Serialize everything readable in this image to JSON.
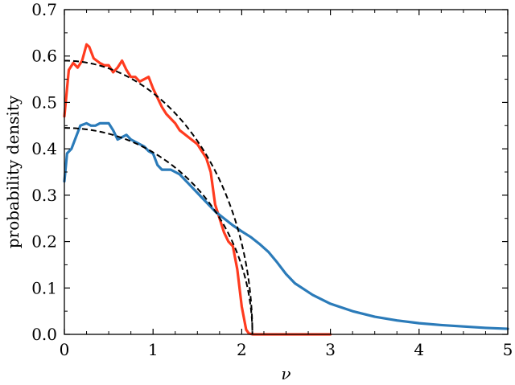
{
  "chart_data": {
    "type": "line",
    "xlabel": "ν",
    "ylabel": "probability density",
    "xlim": [
      0,
      5
    ],
    "ylim": [
      0,
      0.7
    ],
    "x_ticks": [
      0,
      1,
      2,
      3,
      4,
      5
    ],
    "x_tick_labels": [
      "0",
      "1",
      "2",
      "3",
      "4",
      "5"
    ],
    "y_ticks": [
      0.0,
      0.1,
      0.2,
      0.3,
      0.4,
      0.5,
      0.6,
      0.7
    ],
    "y_tick_labels": [
      "0.0",
      "0.1",
      "0.2",
      "0.3",
      "0.4",
      "0.5",
      "0.6",
      "0.7"
    ],
    "grid": false,
    "legend": "none",
    "series": [
      {
        "color": "#ff3b1f",
        "style": "solid",
        "x": [
          0.0,
          0.05,
          0.1,
          0.15,
          0.2,
          0.25,
          0.28,
          0.33,
          0.4,
          0.45,
          0.5,
          0.55,
          0.6,
          0.65,
          0.7,
          0.75,
          0.8,
          0.85,
          0.9,
          0.95,
          1.0,
          1.05,
          1.1,
          1.15,
          1.2,
          1.25,
          1.3,
          1.4,
          1.5,
          1.6,
          1.65,
          1.7,
          1.75,
          1.8,
          1.85,
          1.9,
          1.95,
          2.0,
          2.05,
          2.08,
          2.12,
          2.2,
          2.5,
          3.0
        ],
        "y": [
          0.47,
          0.57,
          0.585,
          0.575,
          0.59,
          0.625,
          0.62,
          0.595,
          0.585,
          0.58,
          0.58,
          0.565,
          0.575,
          0.59,
          0.57,
          0.555,
          0.555,
          0.545,
          0.55,
          0.555,
          0.53,
          0.51,
          0.49,
          0.475,
          0.465,
          0.455,
          0.44,
          0.425,
          0.41,
          0.38,
          0.35,
          0.28,
          0.25,
          0.22,
          0.2,
          0.19,
          0.14,
          0.06,
          0.01,
          0.002,
          0.0,
          0.0,
          0.0,
          0.0
        ]
      },
      {
        "color": "#2b7bb9",
        "style": "solid",
        "x": [
          0.0,
          0.03,
          0.08,
          0.12,
          0.18,
          0.25,
          0.3,
          0.35,
          0.4,
          0.45,
          0.5,
          0.55,
          0.6,
          0.65,
          0.7,
          0.75,
          0.8,
          0.85,
          0.9,
          0.95,
          1.0,
          1.05,
          1.1,
          1.15,
          1.2,
          1.25,
          1.3,
          1.4,
          1.5,
          1.6,
          1.7,
          1.8,
          1.9,
          2.0,
          2.1,
          2.2,
          2.3,
          2.4,
          2.5,
          2.6,
          2.8,
          3.0,
          3.25,
          3.5,
          3.75,
          4.0,
          4.25,
          4.5,
          4.75,
          5.0
        ],
        "y": [
          0.33,
          0.39,
          0.4,
          0.42,
          0.45,
          0.455,
          0.45,
          0.45,
          0.455,
          0.455,
          0.455,
          0.44,
          0.42,
          0.425,
          0.43,
          0.42,
          0.415,
          0.41,
          0.405,
          0.395,
          0.39,
          0.365,
          0.355,
          0.355,
          0.355,
          0.35,
          0.345,
          0.325,
          0.305,
          0.285,
          0.265,
          0.25,
          0.235,
          0.222,
          0.21,
          0.195,
          0.178,
          0.155,
          0.13,
          0.11,
          0.085,
          0.066,
          0.05,
          0.038,
          0.03,
          0.024,
          0.02,
          0.017,
          0.014,
          0.012
        ]
      },
      {
        "color": "#000000",
        "style": "dashed",
        "semicircle_radius": 2.12,
        "semicircle_peak": 0.59
      },
      {
        "color": "#000000",
        "style": "dashed",
        "semicircle_radius": 2.12,
        "semicircle_peak": 0.445
      }
    ]
  }
}
